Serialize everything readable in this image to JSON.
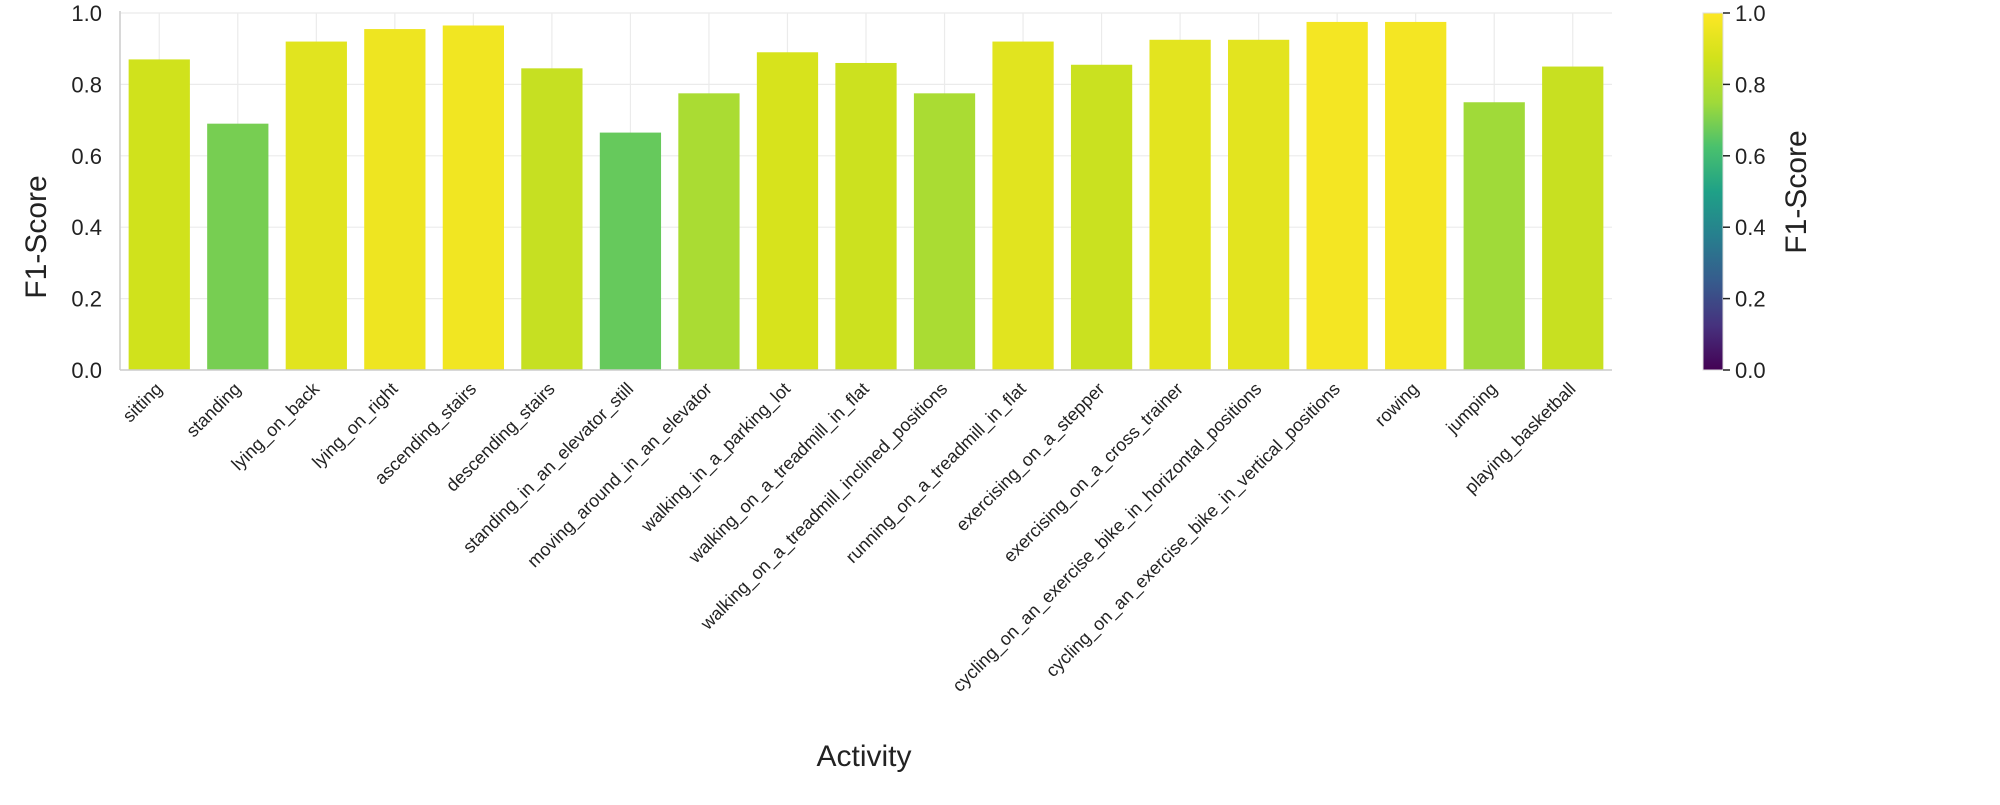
{
  "chart_data": {
    "type": "bar",
    "title": "",
    "xlabel": "Activity",
    "ylabel": "F1-Score",
    "ylim": [
      0,
      1.0
    ],
    "yticks": [
      "0.0",
      "0.2",
      "0.4",
      "0.6",
      "0.8",
      "1.0"
    ],
    "grid": true,
    "categories": [
      "sitting",
      "standing",
      "lying_on_back",
      "lying_on_right",
      "ascending_stairs",
      "descending_stairs",
      "standing_in_an_elevator_still",
      "moving_around_in_an_elevator",
      "walking_in_a_parking_lot",
      "walking_on_a_treadmill_in_flat",
      "walking_on_a_treadmill_inclined_positions",
      "running_on_a_treadmill_in_flat",
      "exercising_on_a_stepper",
      "exercising_on_a_cross_trainer",
      "cycling_on_an_exercise_bike_in_horizontal_positions",
      "cycling_on_an_exercise_bike_in_vertical_positions",
      "rowing",
      "jumping",
      "playing_basketball"
    ],
    "values": [
      0.87,
      0.69,
      0.92,
      0.955,
      0.965,
      0.845,
      0.665,
      0.775,
      0.89,
      0.86,
      0.775,
      0.92,
      0.855,
      0.925,
      0.925,
      0.975,
      0.975,
      0.75,
      0.85
    ],
    "colorbar": {
      "label": "F1-Score",
      "colormap": "viridis",
      "range": [
        0,
        1.0
      ],
      "ticks": [
        "0.0",
        "0.2",
        "0.4",
        "0.6",
        "0.8",
        "1.0"
      ]
    }
  }
}
